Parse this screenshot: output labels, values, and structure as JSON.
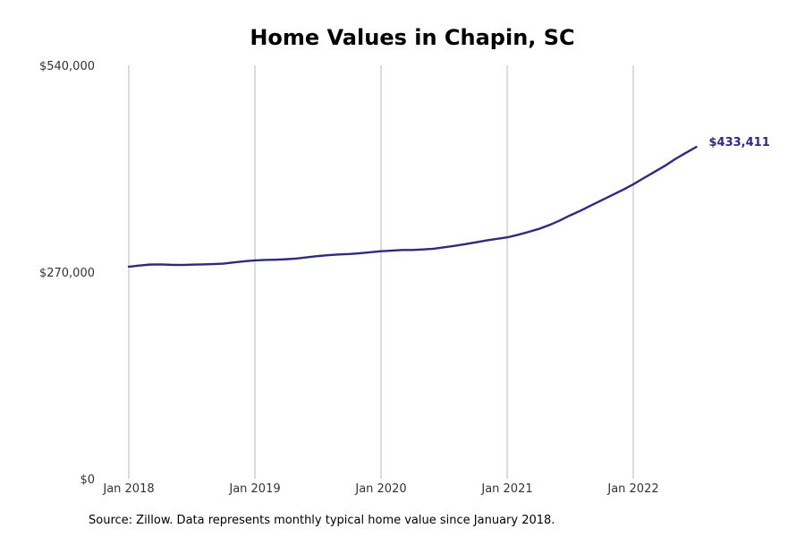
{
  "chart_data": {
    "type": "line",
    "title": "Home Values in Chapin, SC",
    "xlabel": "",
    "ylabel": "",
    "ylim": [
      0,
      540000
    ],
    "grid": "vertical",
    "legend": "none",
    "y_ticks": [
      {
        "value": 0,
        "label": "$0"
      },
      {
        "value": 270000,
        "label": "$270,000"
      },
      {
        "value": 540000,
        "label": "$540,000"
      }
    ],
    "x_ticks": [
      {
        "value": "2018-01",
        "label": "Jan 2018"
      },
      {
        "value": "2019-01",
        "label": "Jan 2019"
      },
      {
        "value": "2020-01",
        "label": "Jan 2020"
      },
      {
        "value": "2021-01",
        "label": "Jan 2021"
      },
      {
        "value": "2022-01",
        "label": "Jan 2022"
      }
    ],
    "series": [
      {
        "color": "#2e2a7e",
        "end_label": "$433,411",
        "x": [
          "2018-01",
          "2018-02",
          "2018-03",
          "2018-04",
          "2018-05",
          "2018-06",
          "2018-07",
          "2018-08",
          "2018-09",
          "2018-10",
          "2018-11",
          "2018-12",
          "2019-01",
          "2019-02",
          "2019-03",
          "2019-04",
          "2019-05",
          "2019-06",
          "2019-07",
          "2019-08",
          "2019-09",
          "2019-10",
          "2019-11",
          "2019-12",
          "2020-01",
          "2020-02",
          "2020-03",
          "2020-04",
          "2020-05",
          "2020-06",
          "2020-07",
          "2020-08",
          "2020-09",
          "2020-10",
          "2020-11",
          "2020-12",
          "2021-01",
          "2021-02",
          "2021-03",
          "2021-04",
          "2021-05",
          "2021-06",
          "2021-07",
          "2021-08",
          "2021-09",
          "2021-10",
          "2021-11",
          "2021-12",
          "2022-01",
          "2022-02",
          "2022-03",
          "2022-04",
          "2022-05",
          "2022-06"
        ],
        "values": [
          277000,
          278500,
          279800,
          280000,
          279500,
          279300,
          279700,
          280000,
          280400,
          281000,
          282600,
          284100,
          285300,
          285800,
          286200,
          286800,
          287800,
          289300,
          290900,
          292100,
          293000,
          293600,
          294600,
          295900,
          297200,
          298000,
          298800,
          298800,
          299600,
          300500,
          302300,
          304300,
          306400,
          308800,
          311300,
          313300,
          315300,
          318600,
          322300,
          326300,
          331300,
          337300,
          344100,
          350300,
          357100,
          363900,
          370600,
          377300,
          384600,
          392700,
          400700,
          408700,
          417700,
          425700
        ]
      },
      {
        "x": [
          "2022-07"
        ],
        "values": [
          433411
        ]
      }
    ]
  },
  "source_note": "Source: Zillow. Data represents monthly typical home value since January 2018."
}
